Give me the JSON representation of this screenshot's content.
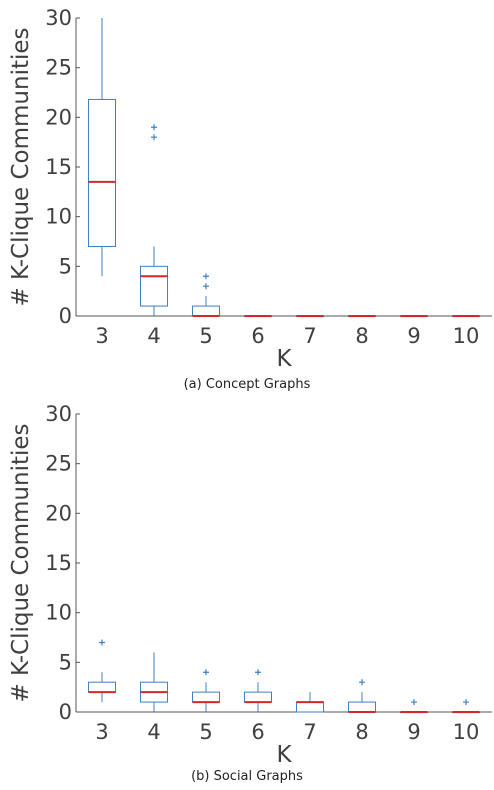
{
  "chart_data": [
    {
      "type": "box",
      "caption": "(a) Concept Graphs",
      "xlabel": "K",
      "ylabel": "# K-Clique Communities",
      "ylim": [
        0,
        30
      ],
      "yticks": [
        0,
        5,
        10,
        15,
        20,
        25,
        30
      ],
      "categories": [
        "3",
        "4",
        "5",
        "6",
        "7",
        "8",
        "9",
        "10"
      ],
      "colors": {
        "box": "#3b7fc4",
        "median": "#d62728",
        "outlier": "#3b7fc4"
      },
      "boxes": [
        {
          "k": "3",
          "min": 4,
          "q1": 7,
          "median": 13.5,
          "q3": 21.8,
          "max": 30,
          "outliers": []
        },
        {
          "k": "4",
          "min": 0,
          "q1": 1,
          "median": 4,
          "q3": 5,
          "max": 7,
          "outliers": [
            18,
            19
          ]
        },
        {
          "k": "5",
          "min": 0,
          "q1": 0,
          "median": 0,
          "q3": 1,
          "max": 2,
          "outliers": [
            3,
            4
          ]
        },
        {
          "k": "6",
          "min": 0,
          "q1": 0,
          "median": 0,
          "q3": 0,
          "max": 0,
          "outliers": []
        },
        {
          "k": "7",
          "min": 0,
          "q1": 0,
          "median": 0,
          "q3": 0,
          "max": 0,
          "outliers": []
        },
        {
          "k": "8",
          "min": 0,
          "q1": 0,
          "median": 0,
          "q3": 0,
          "max": 0,
          "outliers": []
        },
        {
          "k": "9",
          "min": 0,
          "q1": 0,
          "median": 0,
          "q3": 0,
          "max": 0,
          "outliers": []
        },
        {
          "k": "10",
          "min": 0,
          "q1": 0,
          "median": 0,
          "q3": 0,
          "max": 0,
          "outliers": []
        }
      ]
    },
    {
      "type": "box",
      "caption": "(b) Social Graphs",
      "xlabel": "K",
      "ylabel": "# K-Clique Communities",
      "ylim": [
        0,
        30
      ],
      "yticks": [
        0,
        5,
        10,
        15,
        20,
        25,
        30
      ],
      "categories": [
        "3",
        "4",
        "5",
        "6",
        "7",
        "8",
        "9",
        "10"
      ],
      "colors": {
        "box": "#3b7fc4",
        "median": "#d62728",
        "outlier": "#3b7fc4"
      },
      "boxes": [
        {
          "k": "3",
          "min": 1,
          "q1": 2,
          "median": 2,
          "q3": 3,
          "max": 4,
          "outliers": [
            7
          ]
        },
        {
          "k": "4",
          "min": 0,
          "q1": 1,
          "median": 2,
          "q3": 3,
          "max": 6,
          "outliers": []
        },
        {
          "k": "5",
          "min": 0,
          "q1": 1,
          "median": 1,
          "q3": 2,
          "max": 3,
          "outliers": [
            4
          ]
        },
        {
          "k": "6",
          "min": 0,
          "q1": 1,
          "median": 1,
          "q3": 2,
          "max": 3,
          "outliers": [
            4
          ]
        },
        {
          "k": "7",
          "min": 0,
          "q1": 0,
          "median": 1,
          "q3": 1,
          "max": 2,
          "outliers": []
        },
        {
          "k": "8",
          "min": 0,
          "q1": 0,
          "median": 0,
          "q3": 1,
          "max": 2,
          "outliers": [
            3
          ]
        },
        {
          "k": "9",
          "min": 0,
          "q1": 0,
          "median": 0,
          "q3": 0,
          "max": 0,
          "outliers": [
            1
          ]
        },
        {
          "k": "10",
          "min": 0,
          "q1": 0,
          "median": 0,
          "q3": 0,
          "max": 0,
          "outliers": [
            1
          ]
        }
      ]
    }
  ]
}
